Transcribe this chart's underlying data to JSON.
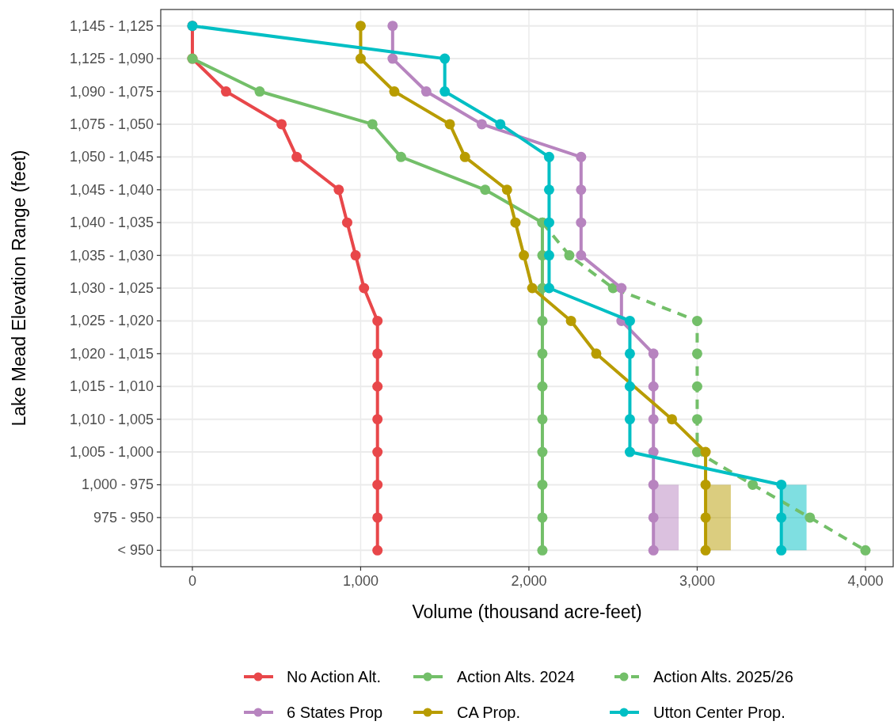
{
  "chart_data": {
    "type": "line",
    "orientation": "horizontal",
    "xlabel": "Volume (thousand acre-feet)",
    "ylabel": "Lake Mead Elevation Range (feet)",
    "categories": [
      "1,145 - 1,125",
      "1,125 - 1,090",
      "1,090 - 1,075",
      "1,075 - 1,050",
      "1,050 - 1,045",
      "1,045 - 1,040",
      "1,040 - 1,035",
      "1,035 - 1,030",
      "1,030 - 1,025",
      "1,025 - 1,020",
      "1,020 - 1,015",
      "1,015 - 1,010",
      "1,010 - 1,005",
      "1,005 - 1,000",
      "1,000 - 975",
      "975 - 950",
      "< 950"
    ],
    "xlim": [
      -188,
      4165
    ],
    "xticks": [
      0,
      {
        "value": 1000,
        "label": "1,000"
      },
      {
        "value": 2000,
        "label": "2,000"
      },
      {
        "value": 3000,
        "label": "3,000"
      },
      {
        "value": 4000,
        "label": "4,000"
      }
    ],
    "grid": true,
    "legend": "bottom",
    "marker": "circle",
    "series": [
      {
        "name": "No Action Alt.",
        "color": "#e8474a",
        "line_style": "solid",
        "values": [
          0,
          0,
          200,
          530,
          620,
          870,
          920,
          970,
          1020,
          1100,
          1100,
          1100,
          1100,
          1100,
          1100,
          1100,
          1100
        ]
      },
      {
        "name": "Action Alts. 2024",
        "color": "#73bf69",
        "line_style": "solid",
        "values": [
          null,
          0,
          400,
          1070,
          1240,
          1740,
          2080,
          2080,
          2080,
          2080,
          2080,
          2080,
          2080,
          2080,
          2080,
          2080,
          2080
        ]
      },
      {
        "name": "Action Alts. 2025/26",
        "color": "#73bf69",
        "line_style": "dashed",
        "values": [
          null,
          null,
          null,
          null,
          null,
          null,
          2080,
          2240,
          2500,
          3000,
          3000,
          3000,
          3000,
          3000,
          3330,
          3670,
          4000
        ]
      },
      {
        "name": "6 States Prop",
        "color": "#b784bf",
        "line_style": "solid",
        "values": [
          1190,
          1190,
          1390,
          1720,
          2310,
          2310,
          2310,
          2310,
          2550,
          2550,
          2740,
          2740,
          2740,
          2740,
          2740,
          2740,
          2740
        ],
        "lower": [
          null,
          null,
          null,
          null,
          null,
          null,
          null,
          null,
          null,
          null,
          null,
          null,
          null,
          null,
          2740,
          2740,
          2740
        ],
        "upper": [
          null,
          null,
          null,
          null,
          null,
          null,
          null,
          null,
          null,
          null,
          null,
          null,
          null,
          null,
          2890,
          2890,
          2890
        ]
      },
      {
        "name": "CA Prop.",
        "color": "#b89c00",
        "line_style": "solid",
        "values": [
          1000,
          1000,
          1200,
          1530,
          1620,
          1870,
          1920,
          1970,
          2020,
          2250,
          2400,
          null,
          2850,
          3050,
          3050,
          3050,
          3050
        ],
        "lower": [
          null,
          null,
          null,
          null,
          null,
          null,
          null,
          null,
          null,
          null,
          null,
          null,
          null,
          null,
          3050,
          3050,
          3050
        ],
        "upper": [
          null,
          null,
          null,
          null,
          null,
          null,
          null,
          null,
          null,
          null,
          null,
          null,
          null,
          null,
          3200,
          3200,
          3200
        ]
      },
      {
        "name": "Utton Center Prop.",
        "color": "#00bfc4",
        "line_style": "solid",
        "values": [
          0,
          1500,
          1500,
          1830,
          2120,
          2120,
          2120,
          2120,
          2120,
          2600,
          2600,
          2600,
          2600,
          2600,
          3500,
          3500,
          3500
        ],
        "lower": [
          null,
          null,
          null,
          null,
          null,
          null,
          null,
          null,
          null,
          null,
          null,
          null,
          null,
          null,
          3500,
          3500,
          3500
        ],
        "upper": [
          null,
          null,
          null,
          null,
          null,
          null,
          null,
          null,
          null,
          null,
          null,
          null,
          null,
          null,
          3650,
          3650,
          3650
        ]
      }
    ]
  }
}
